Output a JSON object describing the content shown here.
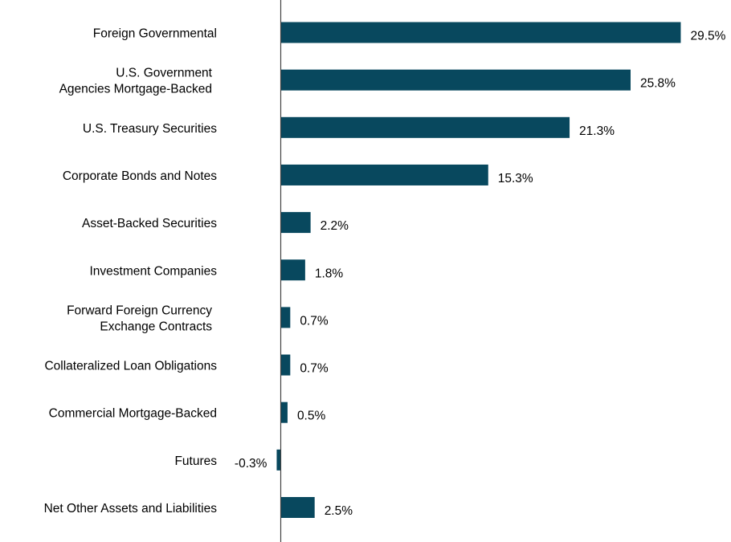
{
  "chart_data": {
    "type": "bar",
    "orientation": "horizontal",
    "categories": [
      [
        "Foreign Governmental"
      ],
      [
        "U.S. Government",
        "Agencies Mortgage-Backed"
      ],
      [
        "U.S. Treasury Securities"
      ],
      [
        "Corporate Bonds and Notes"
      ],
      [
        "Asset-Backed Securities"
      ],
      [
        "Investment Companies"
      ],
      [
        "Forward Foreign Currency",
        "Exchange Contracts"
      ],
      [
        "Collateralized Loan Obligations"
      ],
      [
        "Commercial Mortgage-Backed"
      ],
      [
        "Futures"
      ],
      [
        "Net Other Assets and Liabilities"
      ]
    ],
    "values": [
      29.5,
      25.8,
      21.3,
      15.3,
      2.2,
      1.8,
      0.7,
      0.7,
      0.5,
      -0.3,
      2.5
    ],
    "value_labels": [
      "29.5%",
      "25.8%",
      "21.3%",
      "15.3%",
      "2.2%",
      "1.8%",
      "0.7%",
      "0.7%",
      "0.5%",
      "-0.3%",
      "2.5%"
    ],
    "xlim": [
      -0.3,
      29.5
    ],
    "bar_color": "#08485e",
    "axis_color": "#404040",
    "grid": false,
    "legend": "none"
  }
}
